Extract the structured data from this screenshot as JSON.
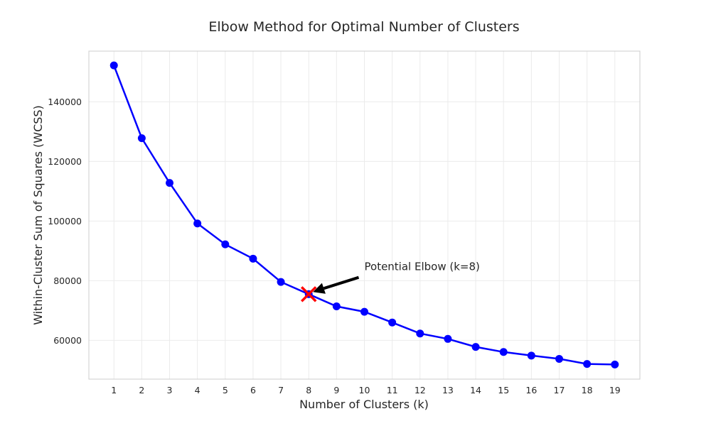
{
  "chart_data": {
    "type": "line",
    "title": "Elbow Method for Optimal Number of Clusters",
    "xlabel": "Number of Clusters (k)",
    "ylabel": "Within-Cluster Sum of Squares (WCSS)",
    "x": [
      1,
      2,
      3,
      4,
      5,
      6,
      7,
      8,
      9,
      10,
      11,
      12,
      13,
      14,
      15,
      16,
      17,
      18,
      19
    ],
    "y": [
      152200,
      127800,
      112800,
      99200,
      92200,
      87400,
      79600,
      75500,
      71400,
      69600,
      66000,
      62300,
      60500,
      57800,
      56100,
      54900,
      53800,
      52100,
      51900
    ],
    "xlim": [
      0.1,
      19.9
    ],
    "ylim": [
      47000,
      157000
    ],
    "yticks": [
      60000,
      80000,
      100000,
      120000,
      140000
    ],
    "grid": true,
    "line_color": "#0000ff",
    "marker_color": "#0000ff",
    "highlight": {
      "x": 8,
      "y": 75500,
      "marker": "x",
      "color": "#ff0000"
    },
    "annotation": {
      "text": "Potential Elbow (k=8)",
      "target_x": 8,
      "target_y": 75500,
      "text_x": 10,
      "text_y": 83500
    }
  }
}
